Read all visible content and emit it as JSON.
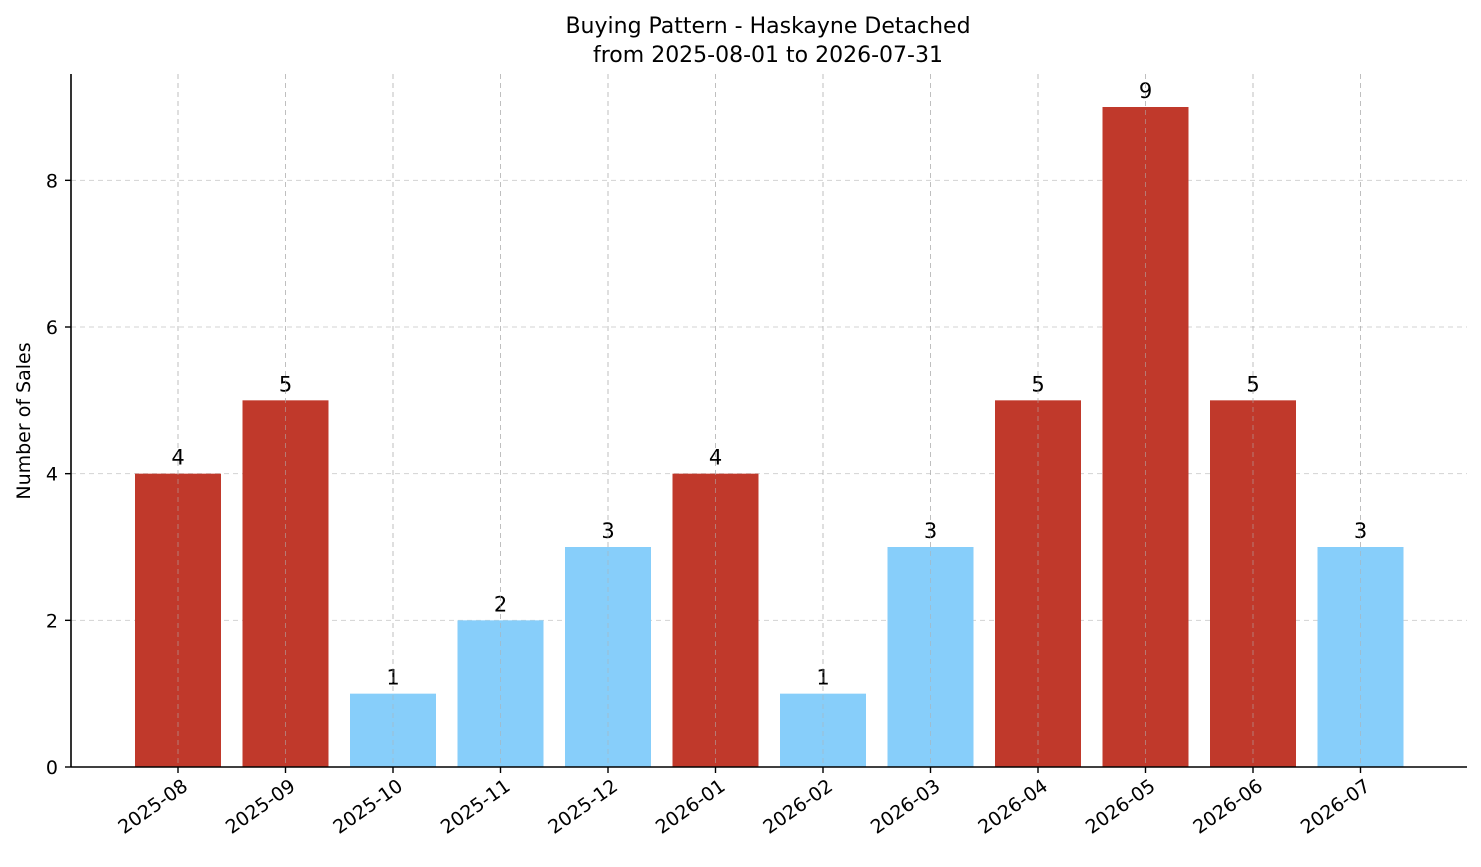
{
  "chart_data": {
    "type": "bar",
    "title": "Buying Pattern - Haskayne Detached",
    "subtitle": "from 2025-08-01 to 2026-07-31",
    "xlabel": "",
    "ylabel": "Number of Sales",
    "categories": [
      "2025-08",
      "2025-09",
      "2025-10",
      "2025-11",
      "2025-12",
      "2026-01",
      "2026-02",
      "2026-03",
      "2026-04",
      "2026-05",
      "2026-06",
      "2026-07"
    ],
    "values": [
      4,
      5,
      1,
      2,
      3,
      4,
      1,
      3,
      5,
      9,
      5,
      3
    ],
    "bar_colors": [
      "#c0392b",
      "#c0392b",
      "#87cefa",
      "#87cefa",
      "#87cefa",
      "#c0392b",
      "#87cefa",
      "#87cefa",
      "#c0392b",
      "#c0392b",
      "#c0392b",
      "#87cefa"
    ],
    "ylim": [
      0,
      9.45
    ],
    "yticks": [
      0,
      2,
      4,
      6,
      8
    ],
    "grid": true,
    "legend": "none"
  },
  "colors": {
    "high": "#c0392b",
    "low": "#87cefa"
  }
}
